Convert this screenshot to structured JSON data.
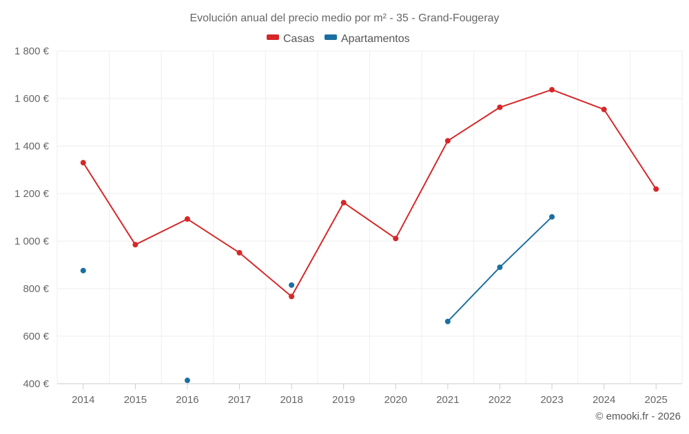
{
  "chart_data": {
    "type": "line",
    "title": "Evolución anual del precio medio por m² - 35 - Grand-Fougeray",
    "categories": [
      "2014",
      "2015",
      "2016",
      "2017",
      "2018",
      "2019",
      "2020",
      "2021",
      "2022",
      "2023",
      "2024",
      "2025"
    ],
    "series": [
      {
        "name": "Casas",
        "color": "#d62728",
        "values": [
          1330,
          985,
          1093,
          951,
          767,
          1162,
          1011,
          1422,
          1563,
          1637,
          1554,
          1219
        ]
      },
      {
        "name": "Apartamentos",
        "color": "#1a6fa0",
        "values": [
          876,
          null,
          414,
          null,
          815,
          null,
          null,
          662,
          890,
          1102,
          null,
          null
        ]
      }
    ],
    "y_ticks": [
      "400 €",
      "600 €",
      "800 €",
      "1 000 €",
      "1 200 €",
      "1 400 €",
      "1 600 €",
      "1 800 €"
    ],
    "ylim": [
      400,
      1800
    ],
    "grid": true,
    "legend_position": "top-center",
    "xlabel": "",
    "ylabel": ""
  },
  "credit": "© emooki.fr - 2026"
}
